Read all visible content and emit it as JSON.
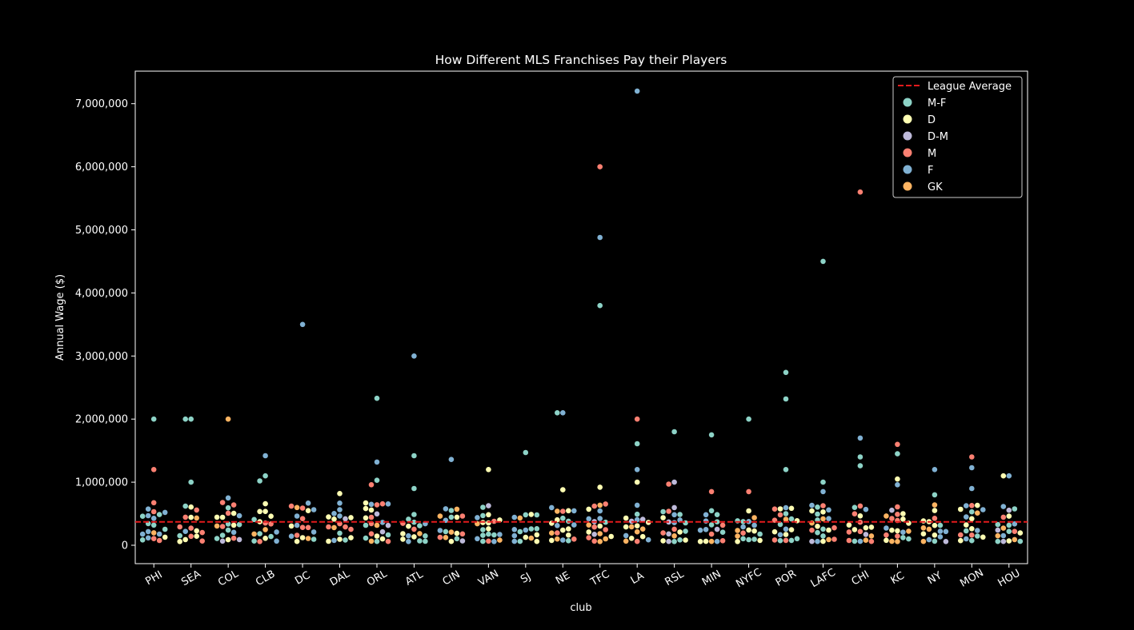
{
  "chart_data": {
    "type": "scatter",
    "subtype": "swarm",
    "title": "How Different MLS Franchises Pay their Players",
    "xlabel": "club",
    "ylabel": "Annual Wage ($)",
    "ylim": [
      -300000,
      7550000
    ],
    "yticks": [
      0,
      1000000,
      2000000,
      3000000,
      4000000,
      5000000,
      6000000,
      7000000
    ],
    "ytick_labels": [
      "0",
      "1,000,000",
      "2,000,000",
      "3,000,000",
      "4,000,000",
      "5,000,000",
      "6,000,000",
      "7,000,000"
    ],
    "categories": [
      "PHI",
      "SEA",
      "COL",
      "CLB",
      "DC",
      "DAL",
      "ORL",
      "ATL",
      "CIN",
      "VAN",
      "SJ",
      "NE",
      "TFC",
      "LA",
      "RSL",
      "MIN",
      "NYFC",
      "POR",
      "LAFC",
      "CHI",
      "KC",
      "NY",
      "MON",
      "HOU"
    ],
    "league_average": 370000,
    "league_average_label": "League Average",
    "league_average_color": "#e31a1c",
    "positions": [
      {
        "name": "M-F",
        "color": "#8dd3c7"
      },
      {
        "name": "D",
        "color": "#ffffb3"
      },
      {
        "name": "D-M",
        "color": "#bebada"
      },
      {
        "name": "M",
        "color": "#fb8072"
      },
      {
        "name": "F",
        "color": "#80b1d3"
      },
      {
        "name": "GK",
        "color": "#fdb462"
      }
    ],
    "notable_points": [
      {
        "club": "PHI",
        "position": "M-F",
        "wage": 2000000
      },
      {
        "club": "PHI",
        "position": "M",
        "wage": 1200000
      },
      {
        "club": "SEA",
        "position": "M-F",
        "wage": 2000000
      },
      {
        "club": "SEA",
        "position": "M-F",
        "wage": 2000000
      },
      {
        "club": "SEA",
        "position": "M-F",
        "wage": 1000000
      },
      {
        "club": "COL",
        "position": "GK",
        "wage": 2000000
      },
      {
        "club": "COL",
        "position": "F",
        "wage": 750000
      },
      {
        "club": "CLB",
        "position": "F",
        "wage": 1420000
      },
      {
        "club": "CLB",
        "position": "M-F",
        "wage": 1100000
      },
      {
        "club": "CLB",
        "position": "M-F",
        "wage": 1020000
      },
      {
        "club": "DC",
        "position": "F",
        "wage": 3500000
      },
      {
        "club": "DAL",
        "position": "D",
        "wage": 820000
      },
      {
        "club": "ORL",
        "position": "M-F",
        "wage": 2330000
      },
      {
        "club": "ORL",
        "position": "F",
        "wage": 1320000
      },
      {
        "club": "ORL",
        "position": "M-F",
        "wage": 1030000
      },
      {
        "club": "ORL",
        "position": "M",
        "wage": 960000
      },
      {
        "club": "ATL",
        "position": "F",
        "wage": 3000000
      },
      {
        "club": "ATL",
        "position": "M-F",
        "wage": 1420000
      },
      {
        "club": "ATL",
        "position": "M-F",
        "wage": 900000
      },
      {
        "club": "CIN",
        "position": "F",
        "wage": 1360000
      },
      {
        "club": "VAN",
        "position": "D",
        "wage": 1200000
      },
      {
        "club": "SJ",
        "position": "M-F",
        "wage": 1470000
      },
      {
        "club": "NE",
        "position": "F",
        "wage": 2100000
      },
      {
        "club": "NE",
        "position": "M-F",
        "wage": 2100000
      },
      {
        "club": "NE",
        "position": "D",
        "wage": 880000
      },
      {
        "club": "TFC",
        "position": "M",
        "wage": 6000000
      },
      {
        "club": "TFC",
        "position": "F",
        "wage": 4880000
      },
      {
        "club": "TFC",
        "position": "M-F",
        "wage": 3800000
      },
      {
        "club": "TFC",
        "position": "D",
        "wage": 920000
      },
      {
        "club": "LA",
        "position": "F",
        "wage": 7200000
      },
      {
        "club": "LA",
        "position": "M",
        "wage": 2000000
      },
      {
        "club": "LA",
        "position": "M-F",
        "wage": 1610000
      },
      {
        "club": "LA",
        "position": "F",
        "wage": 1200000
      },
      {
        "club": "LA",
        "position": "D",
        "wage": 1000000
      },
      {
        "club": "RSL",
        "position": "M-F",
        "wage": 1800000
      },
      {
        "club": "RSL",
        "position": "D-M",
        "wage": 1000000
      },
      {
        "club": "RSL",
        "position": "M",
        "wage": 970000
      },
      {
        "club": "MIN",
        "position": "M-F",
        "wage": 1750000
      },
      {
        "club": "MIN",
        "position": "M",
        "wage": 850000
      },
      {
        "club": "NYFC",
        "position": "M-F",
        "wage": 2000000
      },
      {
        "club": "NYFC",
        "position": "M",
        "wage": 850000
      },
      {
        "club": "POR",
        "position": "M-F",
        "wage": 2740000
      },
      {
        "club": "POR",
        "position": "M-F",
        "wage": 2320000
      },
      {
        "club": "POR",
        "position": "M-F",
        "wage": 1200000
      },
      {
        "club": "LAFC",
        "position": "M-F",
        "wage": 4500000
      },
      {
        "club": "LAFC",
        "position": "M-F",
        "wage": 1000000
      },
      {
        "club": "LAFC",
        "position": "F",
        "wage": 850000
      },
      {
        "club": "CHI",
        "position": "M",
        "wage": 5600000
      },
      {
        "club": "CHI",
        "position": "F",
        "wage": 1700000
      },
      {
        "club": "CHI",
        "position": "M-F",
        "wage": 1400000
      },
      {
        "club": "CHI",
        "position": "M-F",
        "wage": 1260000
      },
      {
        "club": "KC",
        "position": "M",
        "wage": 1600000
      },
      {
        "club": "KC",
        "position": "M-F",
        "wage": 1450000
      },
      {
        "club": "KC",
        "position": "D",
        "wage": 1050000
      },
      {
        "club": "KC",
        "position": "F",
        "wage": 960000
      },
      {
        "club": "NY",
        "position": "F",
        "wage": 1200000
      },
      {
        "club": "NY",
        "position": "M-F",
        "wage": 800000
      },
      {
        "club": "MON",
        "position": "M",
        "wage": 1400000
      },
      {
        "club": "MON",
        "position": "F",
        "wage": 1230000
      },
      {
        "club": "MON",
        "position": "F",
        "wage": 900000
      },
      {
        "club": "HOU",
        "position": "F",
        "wage": 1100000
      },
      {
        "club": "HOU",
        "position": "D",
        "wage": 1100000
      }
    ]
  }
}
